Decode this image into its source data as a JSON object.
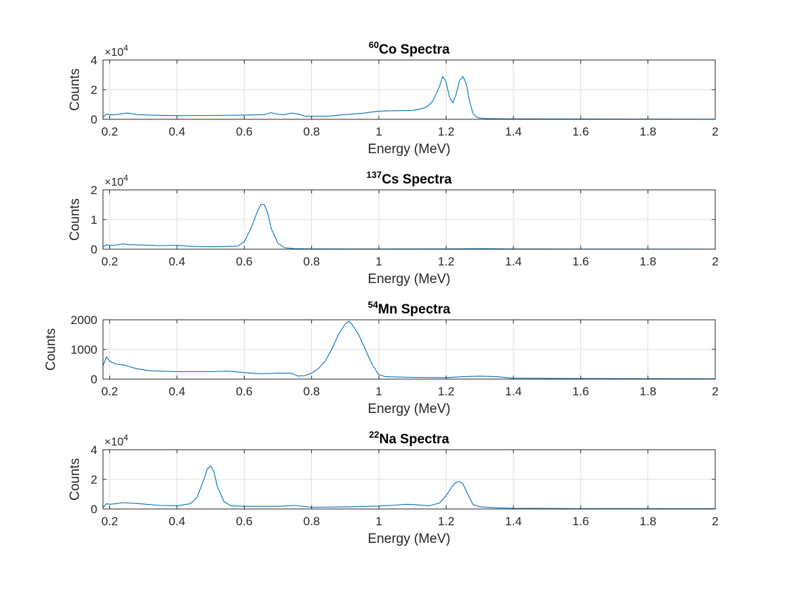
{
  "figure": {
    "background": "#ffffff",
    "line_color": "#0072bd",
    "grid_color": "#dfdfdf",
    "axis_color": "#262626"
  },
  "chart_data": [
    {
      "type": "line",
      "title_sup": "60",
      "title": "Co Spectra",
      "xlabel": "Energy (MeV)",
      "ylabel": "Counts",
      "xlim": [
        0.18,
        2
      ],
      "ylim": [
        0,
        40000
      ],
      "xticks": [
        "0.2",
        "0.4",
        "0.6",
        "0.8",
        "1",
        "1.2",
        "1.4",
        "1.6",
        "1.8",
        "2"
      ],
      "xtick_values": [
        0.2,
        0.4,
        0.6,
        0.8,
        1,
        1.2,
        1.4,
        1.6,
        1.8,
        2
      ],
      "yticks": [
        "0",
        "2",
        "4"
      ],
      "ytick_values": [
        0,
        20000,
        40000
      ],
      "y_exponent_base": "×10",
      "y_exponent": "4",
      "grid": true,
      "series": [
        {
          "x": [
            0.18,
            0.19,
            0.2,
            0.22,
            0.25,
            0.26,
            0.28,
            0.32,
            0.4,
            0.5,
            0.6,
            0.66,
            0.68,
            0.7,
            0.72,
            0.74,
            0.76,
            0.78,
            0.8,
            0.85,
            0.9,
            0.95,
            1.0,
            1.05,
            1.1,
            1.12,
            1.14,
            1.16,
            1.18,
            1.19,
            1.2,
            1.21,
            1.22,
            1.23,
            1.24,
            1.25,
            1.26,
            1.27,
            1.28,
            1.29,
            1.3,
            1.32,
            1.35,
            1.4,
            1.6,
            1.8,
            2.0
          ],
          "y": [
            1500,
            3500,
            3000,
            3200,
            4200,
            4000,
            3200,
            2800,
            2500,
            2600,
            2800,
            3200,
            4500,
            3300,
            3200,
            4200,
            3500,
            2200,
            2000,
            2200,
            3200,
            4000,
            5500,
            5800,
            6000,
            6800,
            8000,
            12000,
            22000,
            29000,
            25000,
            15000,
            11000,
            17000,
            26000,
            29000,
            24000,
            12000,
            4000,
            1500,
            800,
            500,
            400,
            300,
            200,
            150,
            100
          ]
        }
      ]
    },
    {
      "type": "line",
      "title_sup": "137",
      "title": "Cs Spectra",
      "xlabel": "Energy (MeV)",
      "ylabel": "Counts",
      "xlim": [
        0.18,
        2
      ],
      "ylim": [
        0,
        20000
      ],
      "xticks": [
        "0.2",
        "0.4",
        "0.6",
        "0.8",
        "1",
        "1.2",
        "1.4",
        "1.6",
        "1.8",
        "2"
      ],
      "xtick_values": [
        0.2,
        0.4,
        0.6,
        0.8,
        1,
        1.2,
        1.4,
        1.6,
        1.8,
        2
      ],
      "yticks": [
        "0",
        "1",
        "2"
      ],
      "ytick_values": [
        0,
        10000,
        20000
      ],
      "y_exponent_base": "×10",
      "y_exponent": "4",
      "grid": true,
      "series": [
        {
          "x": [
            0.18,
            0.19,
            0.2,
            0.22,
            0.24,
            0.26,
            0.3,
            0.35,
            0.4,
            0.45,
            0.5,
            0.55,
            0.58,
            0.6,
            0.62,
            0.64,
            0.65,
            0.66,
            0.67,
            0.68,
            0.7,
            0.72,
            0.75,
            0.8,
            1.0,
            1.2,
            1.3,
            1.4,
            1.6,
            2.0
          ],
          "y": [
            800,
            1500,
            1300,
            1400,
            1800,
            1500,
            1400,
            1200,
            1300,
            900,
            800,
            900,
            1000,
            2500,
            7000,
            13000,
            15200,
            15000,
            12000,
            7000,
            2000,
            500,
            200,
            100,
            80,
            100,
            200,
            80,
            50,
            30
          ]
        }
      ]
    },
    {
      "type": "line",
      "title_sup": "54",
      "title": "Mn Spectra",
      "xlabel": "Energy (MeV)",
      "ylabel": "Counts",
      "xlim": [
        0.18,
        2
      ],
      "ylim": [
        0,
        2000
      ],
      "xticks": [
        "0.2",
        "0.4",
        "0.6",
        "0.8",
        "1",
        "1.2",
        "1.4",
        "1.6",
        "1.8",
        "2"
      ],
      "xtick_values": [
        0.2,
        0.4,
        0.6,
        0.8,
        1,
        1.2,
        1.4,
        1.6,
        1.8,
        2
      ],
      "yticks": [
        "0",
        "1000",
        "2000"
      ],
      "ytick_values": [
        0,
        1000,
        2000
      ],
      "grid": true,
      "series": [
        {
          "x": [
            0.18,
            0.19,
            0.2,
            0.22,
            0.24,
            0.25,
            0.28,
            0.32,
            0.4,
            0.5,
            0.55,
            0.6,
            0.65,
            0.7,
            0.74,
            0.76,
            0.78,
            0.8,
            0.82,
            0.84,
            0.86,
            0.88,
            0.9,
            0.91,
            0.92,
            0.94,
            0.96,
            0.98,
            1.0,
            1.02,
            1.1,
            1.2,
            1.25,
            1.3,
            1.35,
            1.4,
            1.6,
            2.0
          ],
          "y": [
            450,
            750,
            600,
            500,
            480,
            450,
            350,
            280,
            250,
            250,
            270,
            220,
            180,
            200,
            200,
            100,
            120,
            200,
            350,
            600,
            1000,
            1500,
            1850,
            1950,
            1850,
            1500,
            1000,
            500,
            150,
            80,
            60,
            50,
            80,
            100,
            80,
            30,
            20,
            10
          ]
        }
      ]
    },
    {
      "type": "line",
      "title_sup": "22",
      "title": "Na Spectra",
      "xlabel": "Energy (MeV)",
      "ylabel": "Counts",
      "xlim": [
        0.18,
        2
      ],
      "ylim": [
        0,
        40000
      ],
      "xticks": [
        "0.2",
        "0.4",
        "0.6",
        "0.8",
        "1",
        "1.2",
        "1.4",
        "1.6",
        "1.8",
        "2"
      ],
      "xtick_values": [
        0.2,
        0.4,
        0.6,
        0.8,
        1,
        1.2,
        1.4,
        1.6,
        1.8,
        2
      ],
      "yticks": [
        "0",
        "2",
        "4"
      ],
      "ytick_values": [
        0,
        20000,
        40000
      ],
      "y_exponent_base": "×10",
      "y_exponent": "4",
      "grid": true,
      "series": [
        {
          "x": [
            0.18,
            0.19,
            0.2,
            0.22,
            0.24,
            0.26,
            0.3,
            0.35,
            0.4,
            0.44,
            0.46,
            0.48,
            0.49,
            0.5,
            0.51,
            0.52,
            0.54,
            0.56,
            0.6,
            0.7,
            0.75,
            0.8,
            0.9,
            1.0,
            1.05,
            1.08,
            1.1,
            1.15,
            1.18,
            1.2,
            1.22,
            1.23,
            1.24,
            1.25,
            1.26,
            1.28,
            1.3,
            1.35,
            1.4,
            1.6,
            2.0
          ],
          "y": [
            1000,
            3500,
            3200,
            3600,
            4300,
            4000,
            3400,
            2400,
            2200,
            3500,
            8000,
            20000,
            27000,
            29000,
            25000,
            15000,
            5000,
            2200,
            1800,
            1800,
            2400,
            1200,
            1400,
            2000,
            2600,
            3200,
            3000,
            2200,
            4000,
            9000,
            16000,
            18000,
            18500,
            17000,
            12000,
            3000,
            1500,
            800,
            500,
            300,
            200
          ]
        }
      ]
    }
  ]
}
